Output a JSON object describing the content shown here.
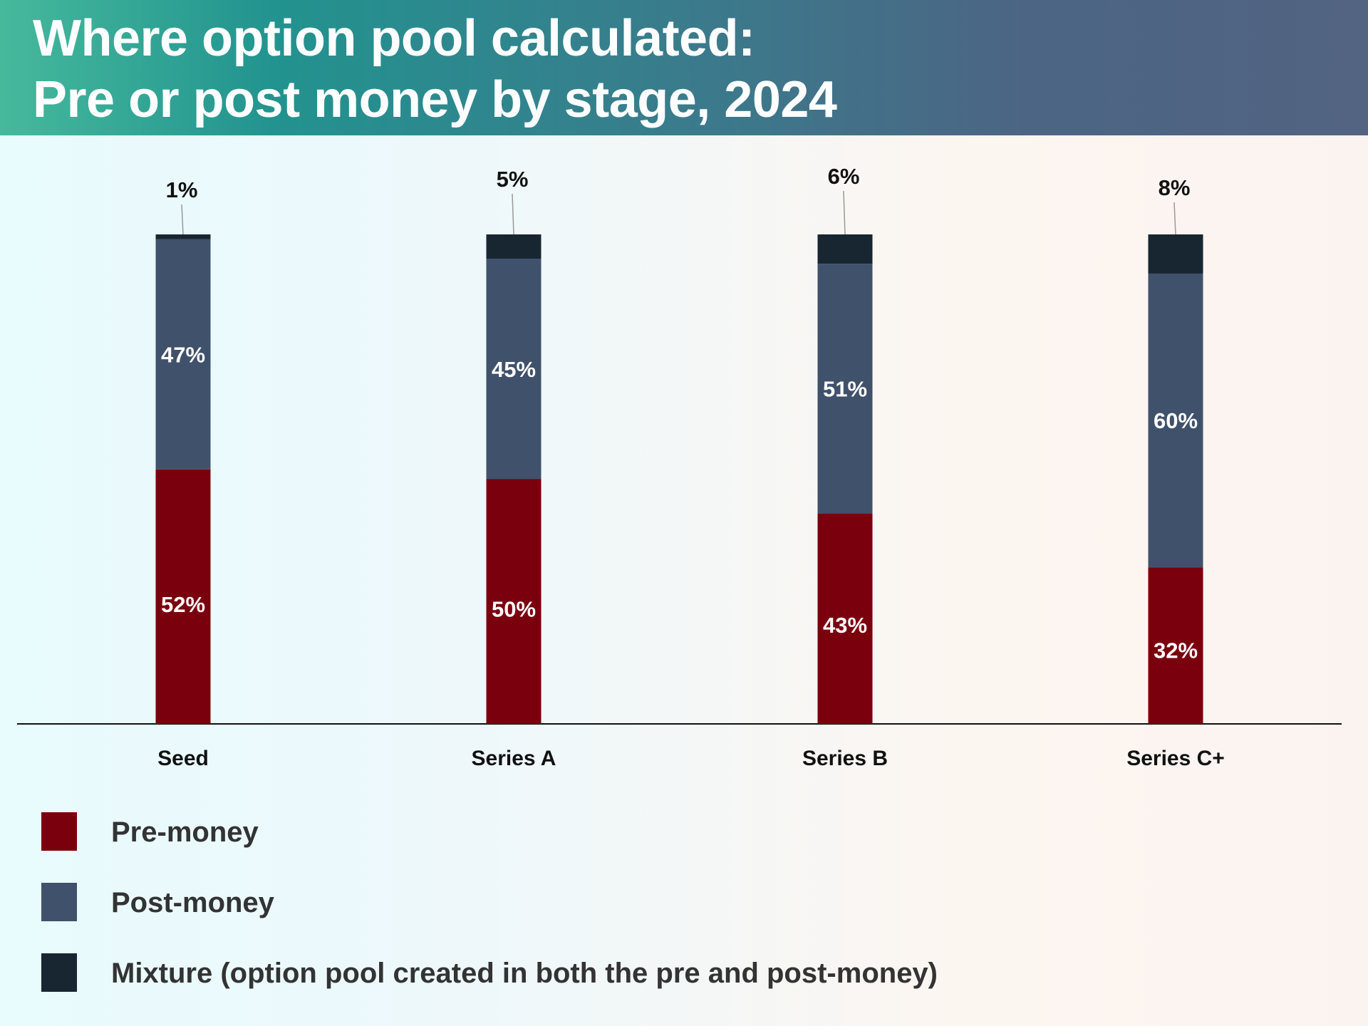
{
  "header": {
    "title_line1": "Where option pool calculated:",
    "title_line2": "Pre or post money by stage, 2024"
  },
  "chart_data": {
    "type": "bar",
    "stacked": true,
    "normalized_percent": true,
    "title": "Where option pool calculated: Pre or post money by stage, 2024",
    "categories": [
      "Seed",
      "Series A",
      "Series B",
      "Series C+"
    ],
    "series": [
      {
        "name": "Pre-money",
        "color": "#7b000e",
        "values": [
          52,
          50,
          43,
          32
        ]
      },
      {
        "name": "Post-money",
        "color": "#40516b",
        "values": [
          47,
          45,
          51,
          60
        ]
      },
      {
        "name": "Mixture (option pool created in both the pre and post-money)",
        "color": "#172630",
        "values": [
          1,
          5,
          6,
          8
        ]
      }
    ],
    "value_format": "{v}%",
    "grid": false,
    "y_axis_shown": false,
    "legend_position": "bottom-left"
  },
  "legend": [
    {
      "label": "Pre-money",
      "color": "#7b000e"
    },
    {
      "label": "Post-money",
      "color": "#40516b"
    },
    {
      "label": "Mixture (option pool created in both the pre and post-money)",
      "color": "#172630"
    }
  ]
}
